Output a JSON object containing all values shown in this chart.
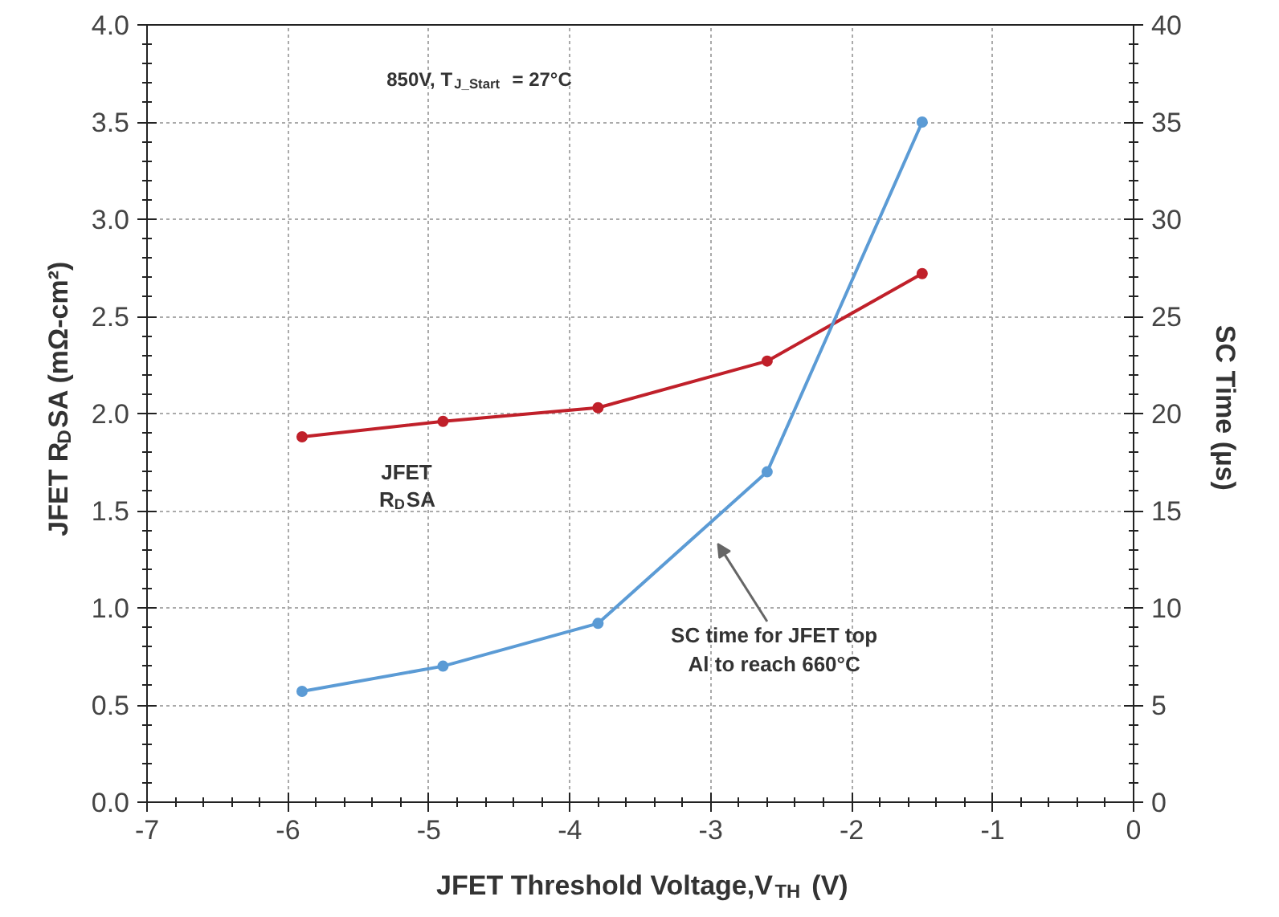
{
  "chart_data": {
    "type": "line",
    "x": [
      -5.9,
      -4.9,
      -3.8,
      -2.6,
      -1.5
    ],
    "series": [
      {
        "name": "JFET R$_{D}$SA",
        "color": "#c0202a",
        "values": [
          1.88,
          1.96,
          2.03,
          2.27,
          2.72
        ]
      },
      {
        "name": "SC time for JFET top Al to reach 660°C",
        "color": "#5b9bd5",
        "axis": "y2",
        "values": [
          5.7,
          7.0,
          9.2,
          17.0,
          35.0
        ]
      }
    ],
    "xlabel": "JFET Threshold Voltage,V$_{TH}$ (V)",
    "ylabel": "JFET R$_{D}$SA (mΩ-cm²)",
    "y2label": "SC Time (µs)",
    "annotations": [
      "850V, T$_{J_Start}$ = 27°C"
    ],
    "xlim": [
      -7,
      0
    ],
    "xticks": [
      -7,
      -6,
      -5,
      -4,
      -3,
      -2,
      -1,
      0
    ],
    "ylim": [
      0,
      4
    ],
    "yticks": [
      {
        "value": 0,
        "label": "0.0"
      },
      {
        "value": 0.5,
        "label": "0.5"
      },
      {
        "value": 1,
        "label": "1.0"
      },
      {
        "value": 1.5,
        "label": "1.5"
      },
      {
        "value": 2,
        "label": "2.0"
      },
      {
        "value": 2.5,
        "label": "2.5"
      },
      {
        "value": 3,
        "label": "3.0"
      },
      {
        "value": 3.5,
        "label": "3.5"
      },
      {
        "value": 4,
        "label": "4.0"
      }
    ],
    "y2lim": [
      0,
      40
    ],
    "y2ticks": [
      0,
      5,
      10,
      15,
      20,
      25,
      30,
      35,
      40
    ],
    "grid": true,
    "legend": false,
    "marker": "circle",
    "line_style": "solid"
  }
}
